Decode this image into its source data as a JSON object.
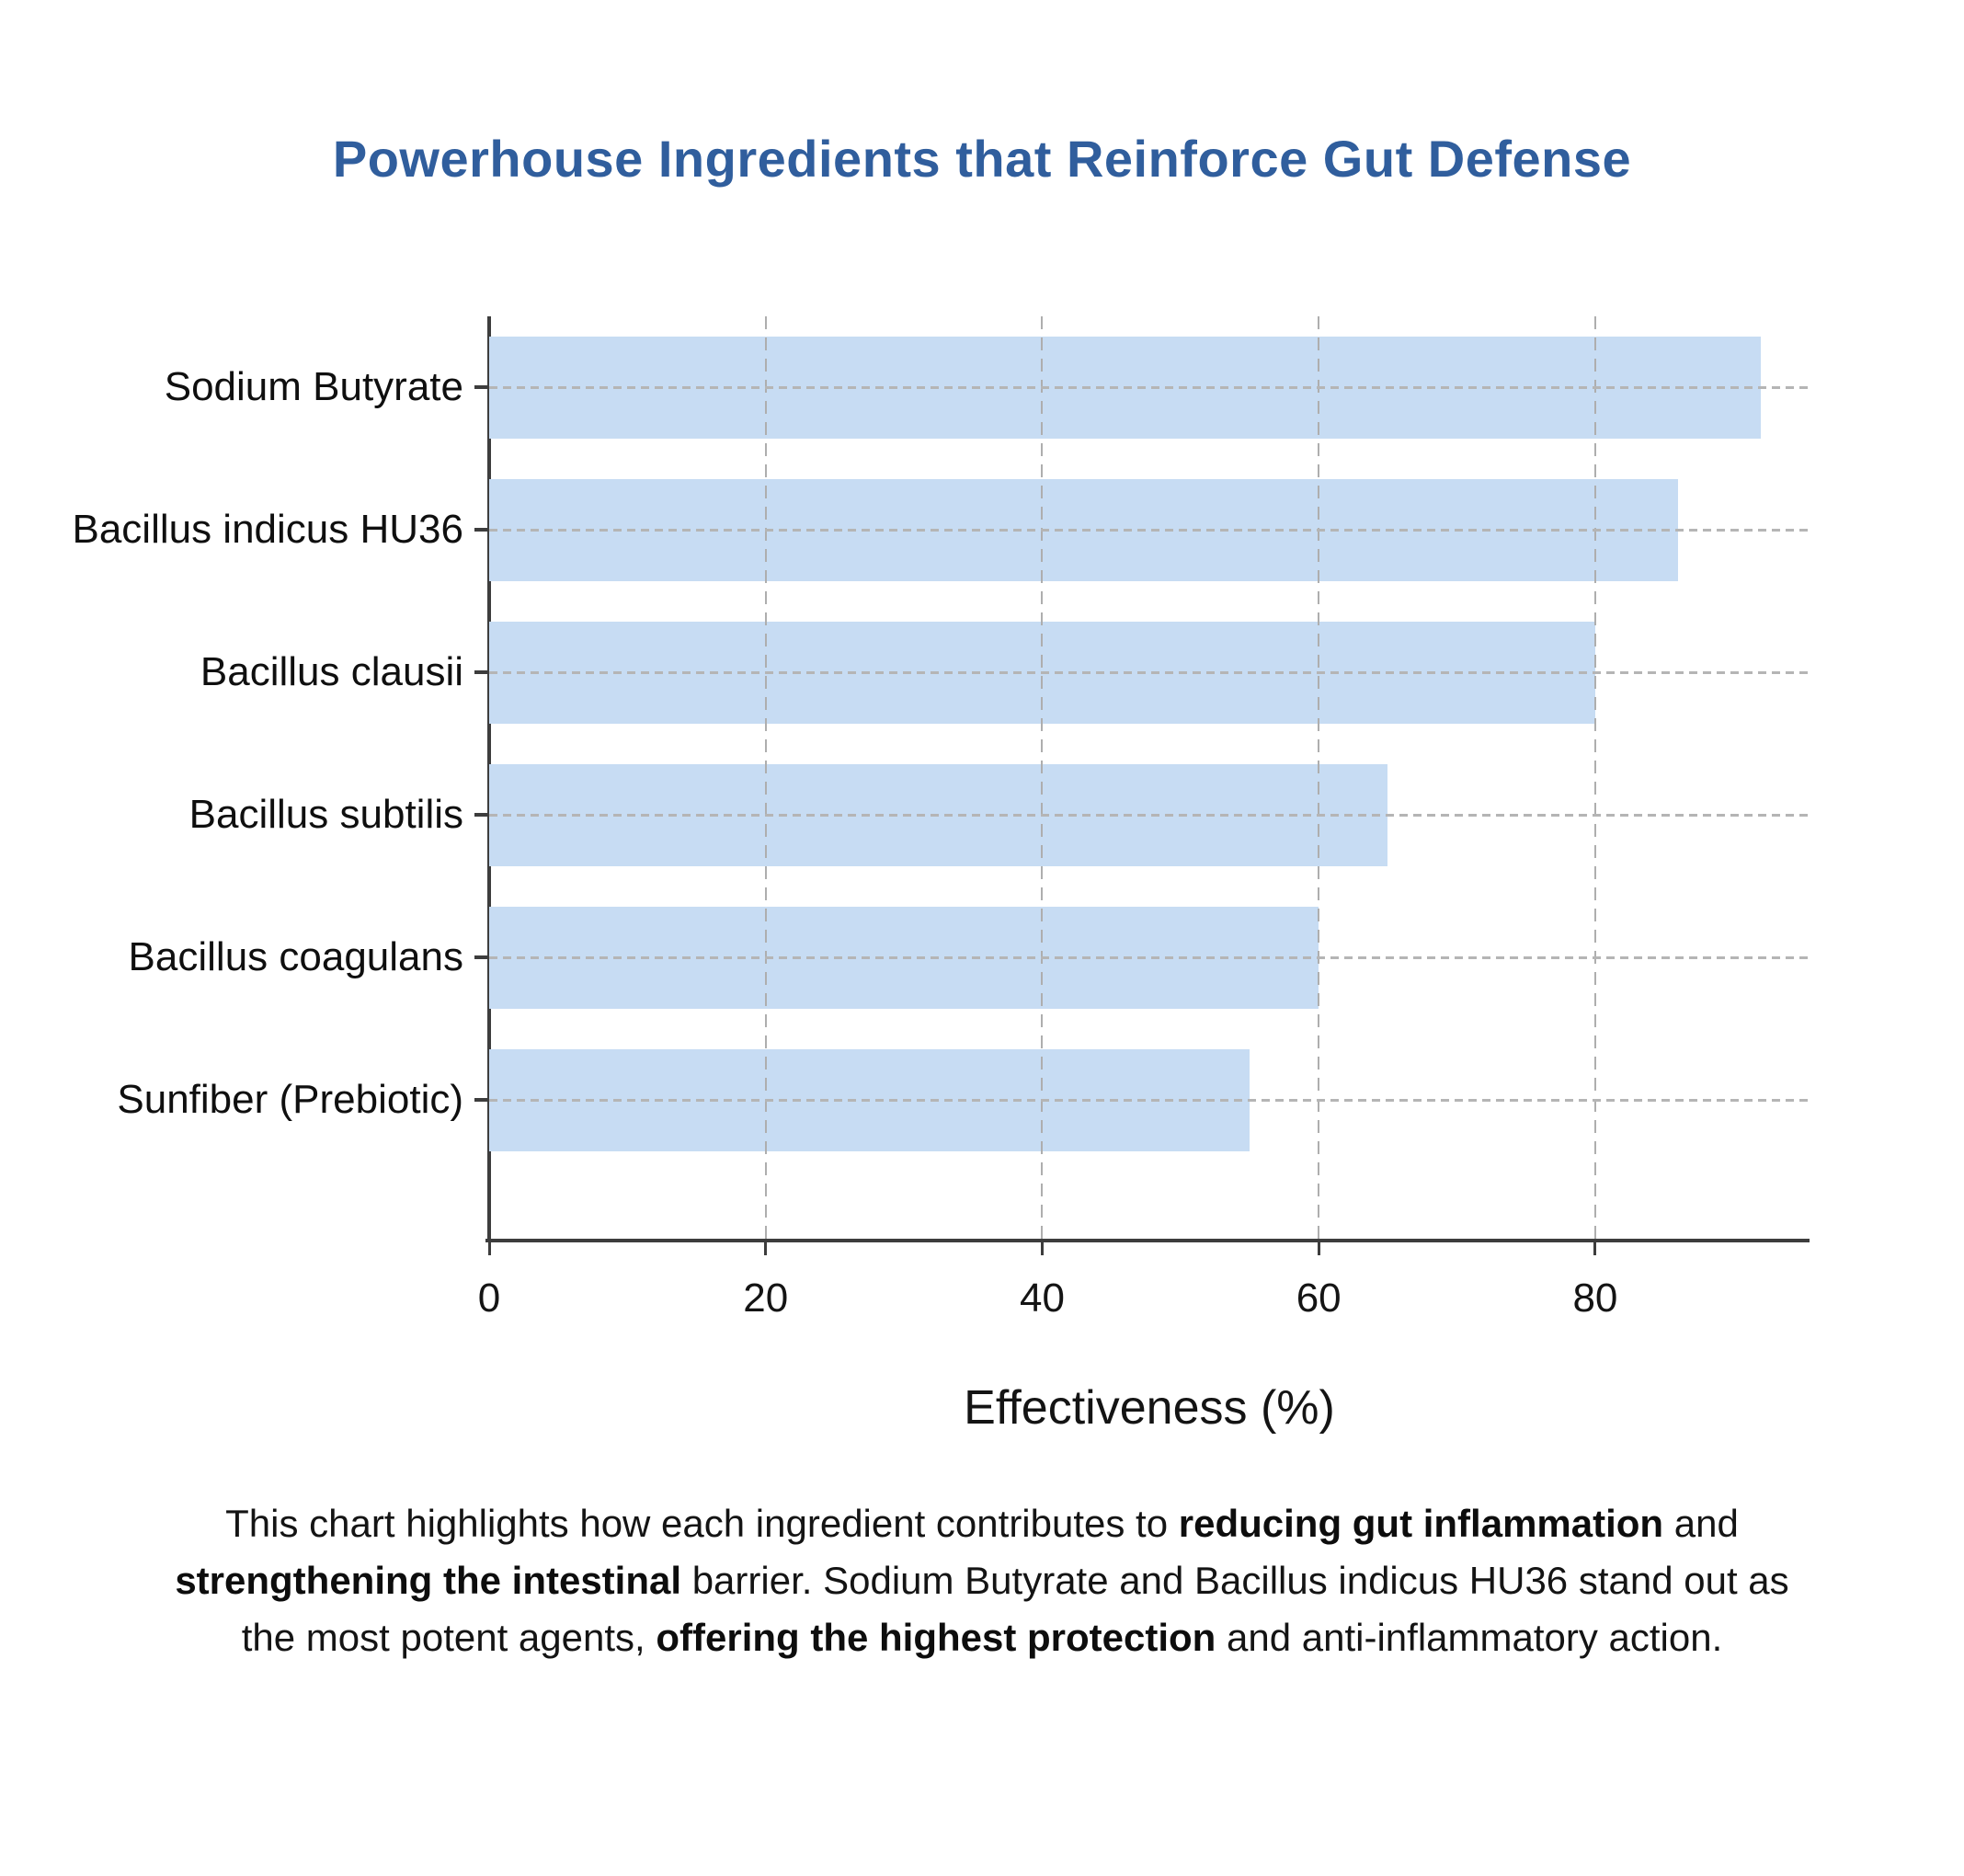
{
  "title": {
    "text": "Powerhouse Ingredients that Reinforce Gut Defense",
    "color": "#305e9d"
  },
  "chart_data": {
    "type": "bar",
    "orientation": "horizontal",
    "title": "Powerhouse Ingredients that Reinforce Gut Defense",
    "categories": [
      "Sodium Butyrate",
      "Bacillus indicus HU36",
      "Bacillus clausii",
      "Bacillus subtilis",
      "Bacillus coagulans",
      "Sunfiber (Prebiotic)"
    ],
    "values": [
      92,
      86,
      80,
      65,
      60,
      55
    ],
    "xlabel": "Effectiveness (%)",
    "ylabel": "",
    "xlim": [
      0,
      95.5
    ],
    "xticks": [
      0,
      20,
      40,
      60,
      80
    ],
    "bar_color": "#c7dcf3",
    "axis_color": "#3d3d3d",
    "grid": "vertical-dashed and horizontal-dotted, light gray",
    "legend": "none"
  },
  "caption": {
    "segments": [
      {
        "text": "This chart highlights how each ingredient contributes to ",
        "bold": false
      },
      {
        "text": "reducing gut inflammation",
        "bold": true
      },
      {
        "text": " and ",
        "bold": false
      },
      {
        "text": "strengthening the intestinal",
        "bold": true
      },
      {
        "text": " barrier. Sodium Butyrate and Bacillus indicus HU36 stand out as the most potent agents, ",
        "bold": false
      },
      {
        "text": "offering the highest protection",
        "bold": true
      },
      {
        "text": " and anti-inflammatory action.",
        "bold": false
      }
    ]
  }
}
